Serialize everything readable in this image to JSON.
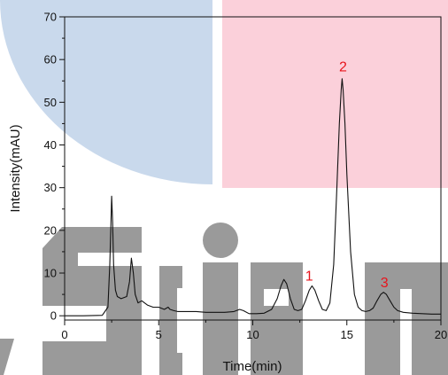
{
  "chart_data": {
    "type": "line",
    "title": "",
    "xlabel": "Time(min)",
    "ylabel": "Intensity(mAU)",
    "xlim": [
      0,
      20
    ],
    "ylim": [
      -1,
      70
    ],
    "x_ticks": [
      0,
      5,
      10,
      15,
      20
    ],
    "y_ticks": [
      0,
      10,
      20,
      30,
      40,
      50,
      60,
      70
    ],
    "grid": false,
    "legend": "none",
    "colors": {
      "trace": "#111111",
      "peak_labels": "#e8141c",
      "bg_blue": "#c9d9ec",
      "bg_pink": "#fbd0da",
      "watermark": "#9a9a9a"
    },
    "series": [
      {
        "x": [
          0,
          1,
          2,
          2.3,
          2.4,
          2.45,
          2.5,
          2.55,
          2.6,
          2.7,
          2.8,
          3.0,
          3.3,
          3.45,
          3.55,
          3.65,
          3.75,
          3.9,
          4.1,
          4.4,
          4.7,
          5.0,
          5.3,
          5.5,
          5.6,
          5.8,
          6.0,
          6.5,
          7.0,
          7.5,
          8.0,
          8.5,
          9.0,
          9.3,
          9.5,
          9.8,
          10.2,
          10.6,
          11.0,
          11.3,
          11.5,
          11.65,
          11.8,
          12.0,
          12.2,
          12.4,
          12.6,
          12.8,
          13.0,
          13.15,
          13.3,
          13.5,
          13.7,
          13.9,
          14.1,
          14.3,
          14.45,
          14.6,
          14.7,
          14.75,
          14.8,
          14.9,
          15.0,
          15.2,
          15.4,
          15.6,
          15.8,
          16.0,
          16.2,
          16.4,
          16.6,
          16.8,
          16.95,
          17.1,
          17.3,
          17.5,
          17.7,
          18.0,
          18.5,
          19.0,
          19.5,
          20.0
        ],
        "y": [
          0,
          0,
          0.1,
          2,
          12,
          20,
          28,
          22,
          12,
          6,
          4.5,
          4,
          4.5,
          8,
          13.5,
          10,
          5,
          3,
          3.5,
          2.5,
          2,
          2,
          1.5,
          2,
          1.5,
          1.2,
          1,
          1,
          1,
          0.8,
          0.8,
          0.8,
          1,
          1.5,
          1.2,
          0.5,
          0.5,
          0.6,
          1.5,
          4,
          7,
          8.5,
          7.5,
          4,
          1.5,
          1.2,
          1.5,
          3.5,
          6,
          7,
          6,
          3.5,
          1.5,
          1.2,
          3,
          12,
          28,
          45,
          53,
          55.5,
          53,
          45,
          33,
          15,
          5,
          2,
          1.2,
          1,
          1.2,
          1.8,
          3.5,
          5,
          5.5,
          5,
          3.5,
          2,
          1.2,
          0.8,
          0.6,
          0.5,
          0.4,
          0.4
        ]
      }
    ],
    "annotations": [
      {
        "text": "1",
        "x": 13.0,
        "y": 8.2
      },
      {
        "text": "2",
        "x": 14.8,
        "y": 57.2
      },
      {
        "text": "3",
        "x": 17.0,
        "y": 6.7
      }
    ]
  },
  "watermark": {
    "text": "Science"
  }
}
